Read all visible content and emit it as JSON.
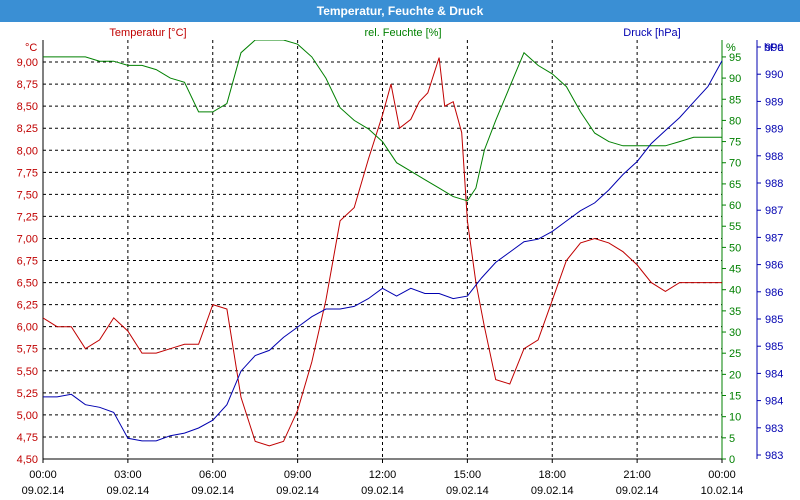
{
  "window": {
    "title": "Temperatur, Feuchte & Druck"
  },
  "colors": {
    "temperature": "#c00000",
    "humidity": "#008000",
    "pressure": "#0000b0",
    "titlebar": "#3a8fd4"
  },
  "chart_data": {
    "type": "line",
    "title": "Temperatur, Feuchte & Druck",
    "grid": true,
    "x_range_hours": [
      0,
      24
    ],
    "x_ticks": [
      {
        "hour": 0,
        "time": "00:00",
        "date": "09.02.14"
      },
      {
        "hour": 3,
        "time": "03:00",
        "date": "09.02.14"
      },
      {
        "hour": 6,
        "time": "06:00",
        "date": "09.02.14"
      },
      {
        "hour": 9,
        "time": "09:00",
        "date": "09.02.14"
      },
      {
        "hour": 12,
        "time": "12:00",
        "date": "09.02.14"
      },
      {
        "hour": 15,
        "time": "15:00",
        "date": "09.02.14"
      },
      {
        "hour": 18,
        "time": "18:00",
        "date": "09.02.14"
      },
      {
        "hour": 21,
        "time": "21:00",
        "date": "09.02.14"
      },
      {
        "hour": 24,
        "time": "00:00",
        "date": "10.02.14"
      }
    ],
    "axes": {
      "temperature": {
        "label": "Temperatur [°C]",
        "unit": "°C",
        "range": [
          4.5,
          9.25
        ],
        "ticks": [
          "4,50",
          "4,75",
          "5,00",
          "5,25",
          "5,50",
          "5,75",
          "6,00",
          "6,25",
          "6,50",
          "6,75",
          "7,00",
          "7,25",
          "7,50",
          "7,75",
          "8,00",
          "8,25",
          "8,50",
          "8,75",
          "9,00"
        ]
      },
      "humidity": {
        "label": "rel. Feuchte [%]",
        "unit": "%",
        "range": [
          0,
          99
        ],
        "ticks": [
          "0",
          "5",
          "10",
          "15",
          "20",
          "25",
          "30",
          "35",
          "40",
          "45",
          "50",
          "55",
          "60",
          "65",
          "70",
          "75",
          "80",
          "85",
          "90",
          "95"
        ]
      },
      "pressure": {
        "label": "Druck [hPa]",
        "unit": "hPa",
        "range": [
          982.8,
          990.9
        ],
        "ticks": [
          "983",
          "983",
          "984",
          "984",
          "985",
          "985",
          "986",
          "986",
          "987",
          "987",
          "988",
          "988",
          "989",
          "989",
          "990",
          "990"
        ]
      }
    },
    "series": [
      {
        "name": "Temperatur [°C]",
        "axis": "temperature",
        "x": [
          0,
          0.5,
          1,
          1.5,
          2,
          2.5,
          3,
          3.5,
          4,
          4.5,
          5,
          5.5,
          6,
          6.5,
          7,
          7.5,
          8,
          8.5,
          9,
          9.5,
          10,
          10.5,
          11,
          11.5,
          12,
          12.3,
          12.6,
          13,
          13.3,
          13.6,
          14,
          14.2,
          14.5,
          14.8,
          15,
          15.3,
          15.6,
          16,
          16.5,
          17,
          17.5,
          18,
          18.5,
          19,
          19.5,
          20,
          20.5,
          21,
          21.5,
          22,
          22.5,
          23,
          23.5,
          24
        ],
        "y": [
          6.1,
          6.0,
          6.0,
          5.75,
          5.85,
          6.1,
          5.95,
          5.7,
          5.7,
          5.75,
          5.8,
          5.8,
          6.25,
          6.2,
          5.2,
          4.7,
          4.65,
          4.7,
          5.05,
          5.6,
          6.3,
          7.2,
          7.35,
          7.9,
          8.4,
          8.75,
          8.25,
          8.35,
          8.55,
          8.65,
          9.05,
          8.5,
          8.55,
          8.2,
          7.2,
          6.5,
          6.0,
          5.4,
          5.35,
          5.75,
          5.85,
          6.3,
          6.75,
          6.95,
          7.0,
          6.95,
          6.85,
          6.7,
          6.5,
          6.4,
          6.5,
          6.5,
          6.5,
          6.5
        ]
      },
      {
        "name": "rel. Feuchte [%]",
        "axis": "humidity",
        "x": [
          0,
          0.5,
          1,
          1.5,
          2,
          2.5,
          3,
          3.5,
          4,
          4.5,
          5,
          5.5,
          6,
          6.5,
          7,
          7.5,
          8,
          8.5,
          9,
          9.5,
          10,
          10.5,
          11,
          11.5,
          12,
          12.5,
          13,
          13.5,
          14,
          14.5,
          15,
          15.3,
          15.6,
          16,
          16.5,
          17,
          17.5,
          18,
          18.5,
          19,
          19.5,
          20,
          20.5,
          21,
          21.5,
          22,
          22.5,
          23,
          23.5,
          24
        ],
        "y": [
          95,
          95,
          95,
          95,
          94,
          94,
          93,
          93,
          92,
          90,
          89,
          82,
          82,
          84,
          96,
          99,
          99,
          99,
          98,
          95,
          90,
          83,
          80,
          78,
          75,
          70,
          68,
          66,
          64,
          62,
          61,
          64,
          73,
          80,
          88,
          96,
          93,
          91,
          88,
          82,
          77,
          75,
          74,
          74,
          74,
          74,
          75,
          76,
          76,
          76
        ]
      },
      {
        "name": "Druck [hPa]",
        "axis": "pressure",
        "x": [
          0,
          0.5,
          1,
          1.5,
          2,
          2.5,
          3,
          3.5,
          4,
          4.5,
          5,
          5.5,
          6,
          6.5,
          7,
          7.5,
          8,
          8.5,
          9,
          9.5,
          10,
          10.5,
          11,
          11.5,
          12,
          12.5,
          13,
          13.5,
          14,
          14.5,
          15,
          15.5,
          16,
          16.5,
          17,
          17.5,
          18,
          18.5,
          19,
          19.5,
          20,
          20.5,
          21,
          21.5,
          22,
          22.5,
          23,
          23.5,
          24
        ],
        "y": [
          984.0,
          984.0,
          984.05,
          983.85,
          983.8,
          983.7,
          983.2,
          983.15,
          983.15,
          983.25,
          983.3,
          983.4,
          983.55,
          983.85,
          984.5,
          984.8,
          984.9,
          985.15,
          985.35,
          985.55,
          985.7,
          985.7,
          985.75,
          985.9,
          986.1,
          985.95,
          986.1,
          986.0,
          986.0,
          985.9,
          985.95,
          986.3,
          986.6,
          986.8,
          987.0,
          987.05,
          987.2,
          987.4,
          987.6,
          987.75,
          988.0,
          988.3,
          988.55,
          988.9,
          989.15,
          989.4,
          989.7,
          990.0,
          990.5
        ]
      }
    ]
  }
}
